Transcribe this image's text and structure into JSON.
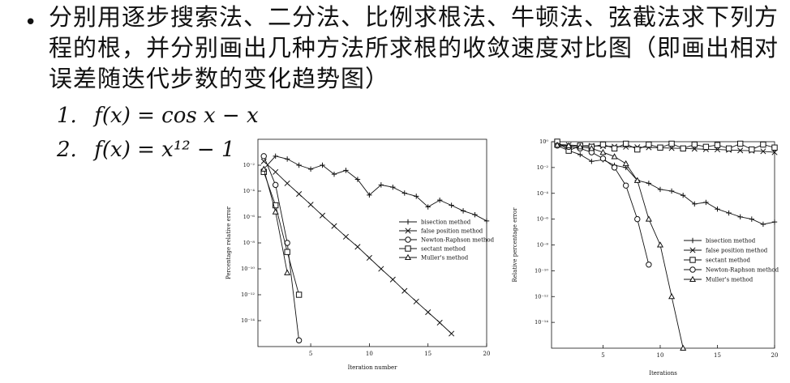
{
  "slide": {
    "bullet": "•",
    "task_text": "分别用逐步搜索法、二分法、比例求根法、牛顿法、弦截法求下列方程的根，并分别画出几种方法所求根的收敛速度对比图（即画出相对误差随迭代步数的变化趋势图）",
    "equations": [
      {
        "number": "1.",
        "formula": "f(x) = cos x − x"
      },
      {
        "number": "2.",
        "formula": "f(x) = x¹² − 1"
      }
    ]
  },
  "chart_data": [
    {
      "type": "line",
      "title": "",
      "xlabel": "Iteration number",
      "ylabel": "Percentage relative error",
      "y_scale": "log",
      "xlim": [
        0.5,
        20
      ],
      "ylim": [
        1e-16,
        1
      ],
      "x_ticks": [
        5,
        10,
        15,
        20
      ],
      "y_tick_labels": [
        "10⁻²",
        "10⁻⁴",
        "10⁻⁶",
        "10⁻⁸",
        "10⁻¹⁰",
        "10⁻¹²",
        "10⁻¹⁴"
      ],
      "legend_position": "right",
      "series": [
        {
          "name": "bisection method",
          "marker": "plus",
          "x": [
            1,
            2,
            3,
            4,
            5,
            6,
            7,
            8,
            9,
            10,
            11,
            12,
            13,
            14,
            15,
            16,
            17,
            18,
            19,
            20
          ],
          "y": [
            0.005,
            0.05,
            0.03,
            0.01,
            0.005,
            0.01,
            0.002,
            0.004,
            0.0008,
            5e-05,
            0.0003,
            0.0002,
            7e-05,
            4e-05,
            6e-06,
            2e-05,
            8e-06,
            3e-06,
            1.5e-06,
            5e-07
          ]
        },
        {
          "name": "false position method",
          "marker": "x",
          "x": [
            1,
            2,
            3,
            4,
            5,
            6,
            7,
            8,
            9,
            10,
            11,
            12,
            13,
            14,
            15,
            16,
            17
          ],
          "y": [
            0.02,
            0.003,
            0.0004,
            6e-05,
            9e-06,
            1.3e-06,
            2e-07,
            3e-08,
            5e-09,
            7e-10,
            1e-10,
            1.5e-11,
            2e-12,
            3e-13,
            4.5e-14,
            7e-15,
            1e-15
          ]
        },
        {
          "name": "Newton-Raphson method",
          "marker": "circle",
          "x": [
            1,
            2,
            3,
            4
          ],
          "y": [
            0.05,
            0.0003,
            1e-08,
            3e-16
          ]
        },
        {
          "name": "sectant method",
          "marker": "square",
          "x": [
            1,
            2,
            3,
            4
          ],
          "y": [
            0.003,
            8e-06,
            2e-09,
            1e-12
          ]
        },
        {
          "name": "Muller's method",
          "marker": "triangle",
          "x": [
            1,
            2,
            3
          ],
          "y": [
            0.005,
            2.5e-06,
            5e-11
          ]
        }
      ]
    },
    {
      "type": "line",
      "title": "",
      "xlabel": "Iterations",
      "ylabel": "Relative percentage error",
      "y_scale": "log",
      "xlim": [
        0.5,
        20
      ],
      "ylim": [
        1e-16,
        1
      ],
      "x_ticks": [
        5,
        10,
        15,
        20
      ],
      "y_tick_labels": [
        "10⁰",
        "10⁻²",
        "10⁻⁴",
        "10⁻⁶",
        "10⁻⁸",
        "10⁻¹⁰",
        "10⁻¹²",
        "10⁻¹⁴"
      ],
      "legend_position": "right",
      "series": [
        {
          "name": "bisection method",
          "marker": "plus",
          "x": [
            1,
            2,
            3,
            4,
            5,
            6,
            7,
            8,
            9,
            10,
            11,
            12,
            13,
            14,
            15,
            16,
            17,
            18,
            19,
            20
          ],
          "y": [
            0.5,
            0.2,
            0.1,
            0.03,
            0.04,
            0.015,
            0.01,
            0.001,
            0.0006,
            0.0002,
            0.00015,
            7e-05,
            1.5e-05,
            2e-05,
            6e-06,
            3e-06,
            1.5e-06,
            1e-06,
            4e-07,
            6e-07
          ]
        },
        {
          "name": "false position method",
          "marker": "x",
          "x": [
            1,
            2,
            3,
            4,
            5,
            6,
            7,
            8,
            9,
            10,
            11,
            12,
            13,
            14,
            15,
            16,
            17,
            18,
            19,
            20
          ],
          "y": [
            0.6,
            0.55,
            0.5,
            0.48,
            0.45,
            0.42,
            0.4,
            0.38,
            0.36,
            0.34,
            0.32,
            0.3,
            0.28,
            0.26,
            0.25,
            0.23,
            0.21,
            0.2,
            0.18,
            0.15
          ]
        },
        {
          "name": "sectant method",
          "marker": "square",
          "x": [
            1,
            2,
            3,
            4,
            5,
            6,
            7,
            8,
            9,
            10,
            11,
            12,
            13,
            14,
            15,
            16,
            17,
            18,
            19,
            20
          ],
          "y": [
            3,
            0.2,
            0.5,
            0.4,
            0.6,
            0.3,
            0.7,
            0.25,
            0.6,
            0.35,
            0.7,
            0.3,
            0.6,
            0.4,
            0.55,
            0.3,
            0.7,
            0.25,
            0.6,
            0.35
          ]
        },
        {
          "name": "Newton-Raphson method",
          "marker": "circle",
          "x": [
            1,
            2,
            3,
            4,
            5,
            6,
            7,
            8,
            9
          ],
          "y": [
            0.5,
            0.4,
            0.3,
            0.15,
            0.05,
            0.01,
            0.0004,
            1e-06,
            3e-10
          ]
        },
        {
          "name": "Muller's method",
          "marker": "triangle",
          "x": [
            1,
            2,
            3,
            4,
            5,
            6,
            7,
            8,
            9,
            10,
            11,
            12
          ],
          "y": [
            0.55,
            0.5,
            0.4,
            0.3,
            0.15,
            0.07,
            0.02,
            0.001,
            1e-06,
            1e-08,
            1e-12,
            1e-16
          ]
        }
      ]
    }
  ]
}
